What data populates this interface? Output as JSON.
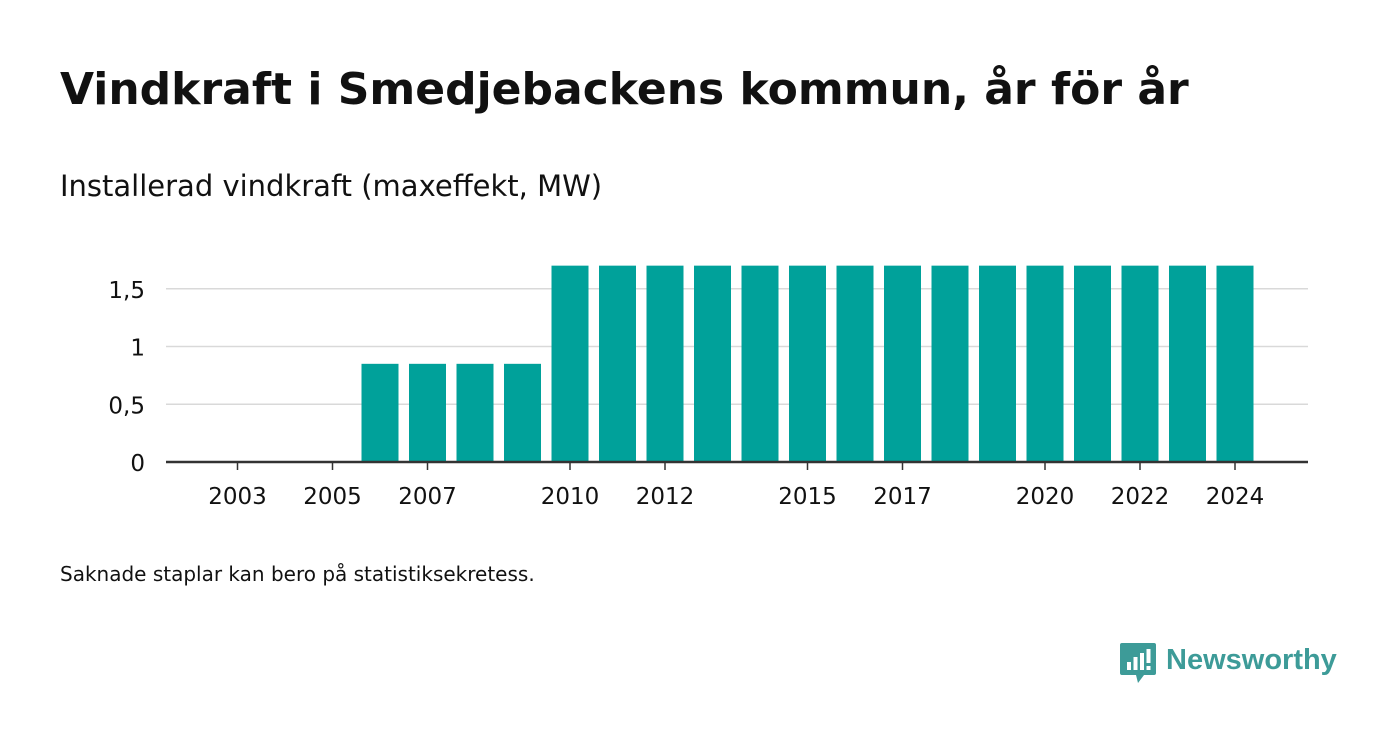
{
  "title": "Vindkraft i Smedjebackens kommun, år för år",
  "subtitle": "Installerad vindkraft (maxeffekt, MW)",
  "footnote": "Saknade staplar kan bero på statistiksekretess.",
  "brand": {
    "name": "Newsworthy",
    "icon": "newsworthy-logo-icon",
    "color": "#3d9b98"
  },
  "colors": {
    "bar": "#00a19a",
    "grid": "#d9d9d9",
    "axis": "#333333",
    "text": "#111111"
  },
  "chart_data": {
    "type": "bar",
    "title": "Installerad vindkraft (maxeffekt, MW)",
    "xlabel": "",
    "ylabel": "",
    "categories": [
      "2003",
      "2004",
      "2005",
      "2006",
      "2007",
      "2008",
      "2009",
      "2010",
      "2011",
      "2012",
      "2013",
      "2014",
      "2015",
      "2016",
      "2017",
      "2018",
      "2019",
      "2020",
      "2021",
      "2022",
      "2023",
      "2024"
    ],
    "values": [
      0,
      0,
      0,
      0.85,
      0.85,
      0.85,
      0.85,
      1.7,
      1.7,
      1.7,
      1.7,
      1.7,
      1.7,
      1.7,
      1.7,
      1.7,
      1.7,
      1.7,
      1.7,
      1.7,
      1.7,
      1.7
    ],
    "x_tick_labels": [
      "2003",
      "2005",
      "2007",
      "2010",
      "2012",
      "2015",
      "2017",
      "2020",
      "2022",
      "2024"
    ],
    "y_ticks": [
      0,
      0.5,
      1,
      1.5
    ],
    "y_tick_labels": [
      "0",
      "0,5",
      "1",
      "1,5"
    ],
    "ylim": [
      0,
      1.7
    ],
    "grid": true,
    "legend": "none"
  }
}
